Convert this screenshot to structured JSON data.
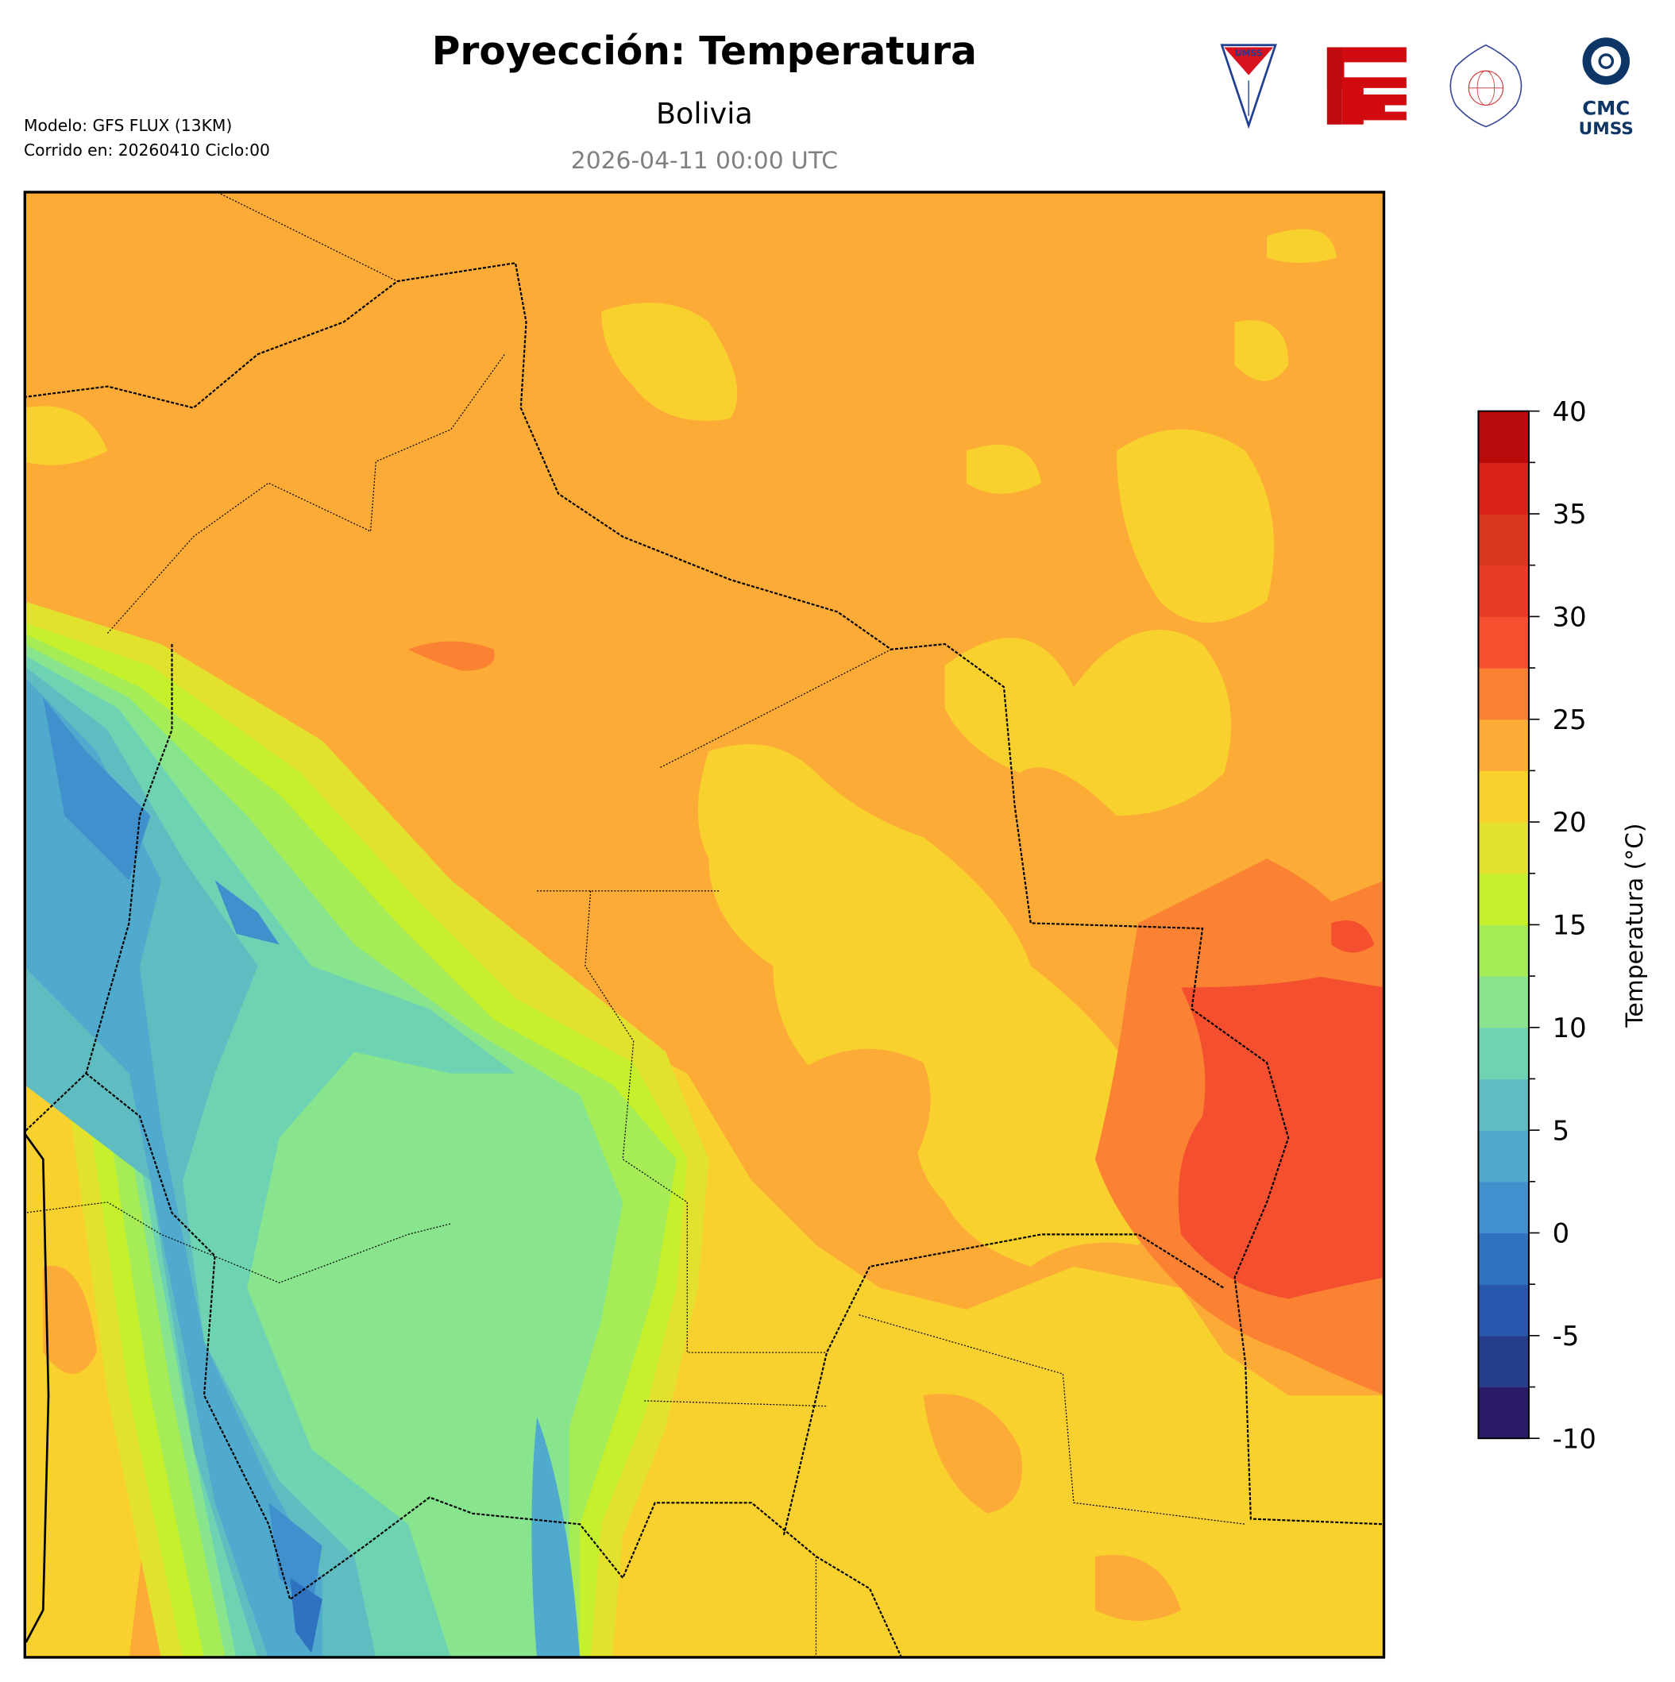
{
  "header": {
    "title": "Proyección: Temperatura",
    "subtitle": "Bolivia",
    "datetime": "2026-04-11 00:00 UTC",
    "model_line": "Modelo: GFS FLUX (13KM)",
    "run_line": "Corrido en: 20260410 Ciclo:00"
  },
  "logos": {
    "umss": "UMSS",
    "fcyt": "FCyT",
    "fisica": "DEPARTAMENTO DE FISICA · FCyT-UMSS",
    "cmc_top": "CMC",
    "cmc_bottom": "UMSS"
  },
  "colorbar": {
    "label": "Temperatura (°C)",
    "min": -10,
    "max": 40,
    "step": 2.5,
    "ticks": [
      "40",
      "35",
      "30",
      "25",
      "20",
      "15",
      "10",
      "5",
      "0",
      "-5",
      "-10"
    ],
    "colors": [
      "#2b1a68",
      "#263d8c",
      "#2857ad",
      "#2f72bf",
      "#3f90cd",
      "#4faacd",
      "#5fbdc2",
      "#6dd3b3",
      "#88e58d",
      "#a5ec56",
      "#c7f02c",
      "#e2e22e",
      "#f9d12f",
      "#fcab36",
      "#fc8233",
      "#f44f2e",
      "#e73b25",
      "#d7381c",
      "#d92319",
      "#b80b0b"
    ]
  }
}
